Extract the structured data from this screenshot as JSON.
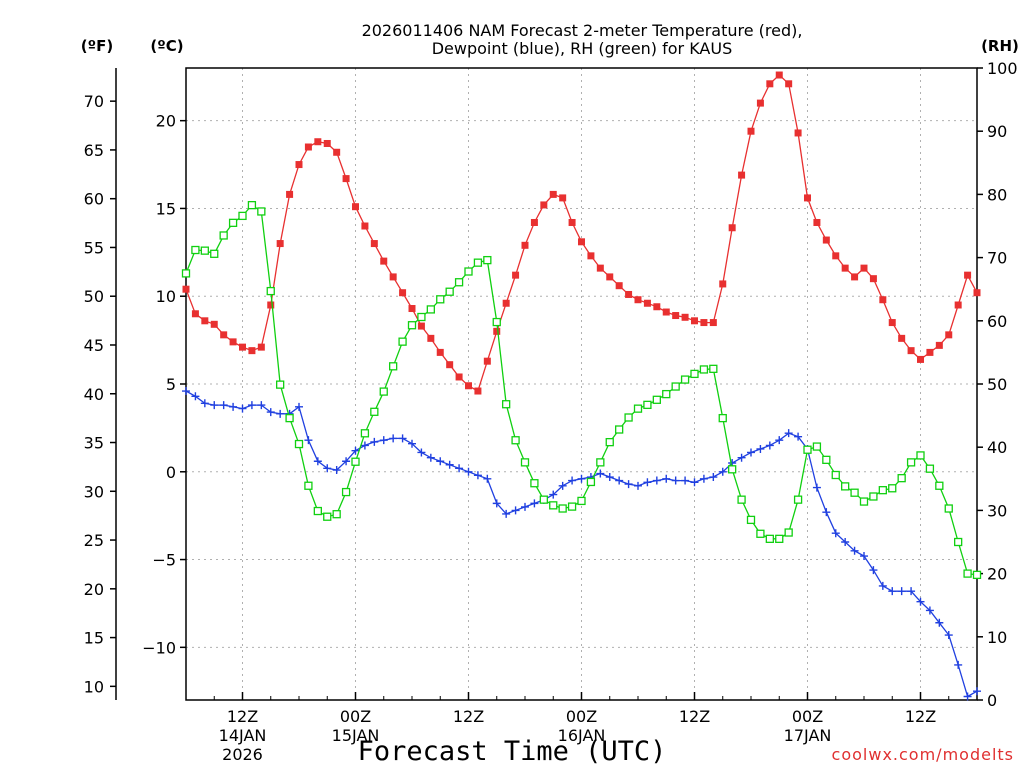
{
  "chart_data": {
    "type": "line",
    "title_line1": "2026011406 NAM Forecast 2-meter Temperature (red),",
    "title_line2": "Dewpoint (blue), RH (green) for KAUS",
    "xlabel": "Forecast Time (UTC)",
    "credit": "coolwx.com/modelts",
    "units": {
      "f": "(ºF)",
      "c": "(ºC)",
      "rh": "(RH)"
    },
    "xlim": [
      0,
      84
    ],
    "x_ticks": [
      {
        "x": 6,
        "label": "12Z",
        "sub": "14JAN",
        "sub2": "2026"
      },
      {
        "x": 18,
        "label": "00Z",
        "sub": "15JAN",
        "sub2": ""
      },
      {
        "x": 30,
        "label": "12Z",
        "sub": "",
        "sub2": ""
      },
      {
        "x": 42,
        "label": "00Z",
        "sub": "16JAN",
        "sub2": ""
      },
      {
        "x": 54,
        "label": "12Z",
        "sub": "",
        "sub2": ""
      },
      {
        "x": 66,
        "label": "00Z",
        "sub": "17JAN",
        "sub2": ""
      },
      {
        "x": 78,
        "label": "12Z",
        "sub": "",
        "sub2": ""
      }
    ],
    "y_celsius": {
      "lim": [
        -13,
        23
      ],
      "ticks": [
        -10,
        -5,
        0,
        5,
        10,
        15,
        20
      ],
      "labels": [
        "−10",
        "−5",
        "0",
        "5",
        "10",
        "15",
        "20"
      ]
    },
    "y_fahrenheit": {
      "ticks": [
        10,
        15,
        20,
        25,
        30,
        35,
        40,
        45,
        50,
        55,
        60,
        65,
        70
      ],
      "labels": [
        "10",
        "15",
        "20",
        "25",
        "30",
        "35",
        "40",
        "45",
        "50",
        "55",
        "60",
        "65",
        "70"
      ]
    },
    "y_rh": {
      "lim": [
        0,
        100
      ],
      "ticks": [
        0,
        10,
        20,
        30,
        40,
        50,
        60,
        70,
        80,
        90,
        100
      ],
      "labels": [
        "0",
        "10",
        "20",
        "30",
        "40",
        "50",
        "60",
        "70",
        "80",
        "90",
        "100"
      ]
    },
    "series": [
      {
        "name": "Temperature",
        "axis": "celsius",
        "color": "#e83030",
        "marker": "filled-square",
        "x": [
          0,
          1,
          2,
          3,
          4,
          5,
          6,
          7,
          8,
          9,
          10,
          11,
          12,
          13,
          14,
          15,
          16,
          17,
          18,
          19,
          20,
          21,
          22,
          23,
          24,
          25,
          26,
          27,
          28,
          29,
          30,
          31,
          32,
          33,
          34,
          35,
          36,
          37,
          38,
          39,
          40,
          41,
          42,
          43,
          44,
          45,
          46,
          47,
          48,
          49,
          50,
          51,
          52,
          53,
          54,
          55,
          56,
          57,
          58,
          59,
          60,
          61,
          62,
          63,
          64,
          65,
          66,
          67,
          68,
          69,
          70,
          71,
          72,
          73,
          74,
          75,
          76,
          77,
          78,
          79,
          80,
          81,
          82,
          83,
          84
        ],
        "values": [
          10.4,
          9.0,
          8.6,
          8.4,
          7.8,
          7.4,
          7.1,
          6.9,
          7.1,
          9.5,
          13.0,
          15.8,
          17.5,
          18.5,
          18.8,
          18.7,
          18.2,
          16.7,
          15.1,
          14.0,
          13.0,
          12.0,
          11.1,
          10.2,
          9.3,
          8.3,
          7.6,
          6.8,
          6.1,
          5.4,
          4.9,
          4.6,
          6.3,
          8.0,
          9.6,
          11.2,
          12.9,
          14.2,
          15.2,
          15.8,
          15.6,
          14.2,
          13.1,
          12.3,
          11.6,
          11.1,
          10.6,
          10.1,
          9.8,
          9.6,
          9.4,
          9.1,
          8.9,
          8.8,
          8.6,
          8.5,
          8.5,
          10.7,
          13.9,
          16.9,
          19.4,
          21.0,
          22.1,
          22.6,
          22.1,
          19.3,
          15.6,
          14.2,
          13.2,
          12.3,
          11.6,
          11.1,
          11.6,
          11.0,
          9.8,
          8.5,
          7.6,
          6.9,
          6.4,
          6.8,
          7.2,
          7.8,
          9.5,
          11.2,
          10.2
        ]
      },
      {
        "name": "Dewpoint",
        "axis": "celsius",
        "color": "#2040e0",
        "marker": "plus",
        "x": [
          0,
          1,
          2,
          3,
          4,
          5,
          6,
          7,
          8,
          9,
          10,
          11,
          12,
          13,
          14,
          15,
          16,
          17,
          18,
          19,
          20,
          21,
          22,
          23,
          24,
          25,
          26,
          27,
          28,
          29,
          30,
          31,
          32,
          33,
          34,
          35,
          36,
          37,
          38,
          39,
          40,
          41,
          42,
          43,
          44,
          45,
          46,
          47,
          48,
          49,
          50,
          51,
          52,
          53,
          54,
          55,
          56,
          57,
          58,
          59,
          60,
          61,
          62,
          63,
          64,
          65,
          66,
          67,
          68,
          69,
          70,
          71,
          72,
          73,
          74,
          75,
          76,
          77,
          78,
          79,
          80,
          81,
          82,
          83,
          84
        ],
        "values": [
          4.6,
          4.3,
          3.9,
          3.8,
          3.8,
          3.7,
          3.6,
          3.8,
          3.8,
          3.4,
          3.3,
          3.3,
          3.7,
          1.8,
          0.6,
          0.2,
          0.1,
          0.6,
          1.2,
          1.5,
          1.7,
          1.8,
          1.9,
          1.9,
          1.6,
          1.1,
          0.8,
          0.6,
          0.4,
          0.2,
          0.0,
          -0.2,
          -0.4,
          -1.8,
          -2.4,
          -2.2,
          -2.0,
          -1.8,
          -1.6,
          -1.3,
          -0.8,
          -0.5,
          -0.4,
          -0.3,
          -0.1,
          -0.3,
          -0.5,
          -0.7,
          -0.8,
          -0.6,
          -0.5,
          -0.4,
          -0.5,
          -0.5,
          -0.6,
          -0.4,
          -0.3,
          0.0,
          0.5,
          0.8,
          1.1,
          1.3,
          1.5,
          1.8,
          2.2,
          2.0,
          1.3,
          -0.9,
          -2.3,
          -3.5,
          -4.0,
          -4.5,
          -4.8,
          -5.6,
          -6.5,
          -6.8,
          -6.8,
          -6.8,
          -7.4,
          -7.9,
          -8.6,
          -9.3,
          -11.0,
          -12.8,
          -12.5
        ]
      },
      {
        "name": "RH",
        "axis": "rh",
        "color": "#10d010",
        "marker": "open-square",
        "x": [
          0,
          1,
          2,
          3,
          4,
          5,
          6,
          7,
          8,
          9,
          10,
          11,
          12,
          13,
          14,
          15,
          16,
          17,
          18,
          19,
          20,
          21,
          22,
          23,
          24,
          25,
          26,
          27,
          28,
          29,
          30,
          31,
          32,
          33,
          34,
          35,
          36,
          37,
          38,
          39,
          40,
          41,
          42,
          43,
          44,
          45,
          46,
          47,
          48,
          49,
          50,
          51,
          52,
          53,
          54,
          55,
          56,
          57,
          58,
          59,
          60,
          61,
          62,
          63,
          64,
          65,
          66,
          67,
          68,
          69,
          70,
          71,
          72,
          73,
          74,
          75,
          76,
          77,
          78,
          79,
          80,
          81,
          82,
          83,
          84
        ],
        "values": [
          67.5,
          71.2,
          71.1,
          70.6,
          73.5,
          75.5,
          76.6,
          78.3,
          77.3,
          64.7,
          49.9,
          44.6,
          40.5,
          33.9,
          29.9,
          29.0,
          29.4,
          32.9,
          37.7,
          42.2,
          45.6,
          48.8,
          52.8,
          56.7,
          59.3,
          60.6,
          61.8,
          63.4,
          64.6,
          66.1,
          67.8,
          69.2,
          69.6,
          59.8,
          46.8,
          41.1,
          37.6,
          34.3,
          31.7,
          30.8,
          30.3,
          30.6,
          31.5,
          34.5,
          37.6,
          40.8,
          42.8,
          44.7,
          46.1,
          46.7,
          47.5,
          48.4,
          49.6,
          50.7,
          51.6,
          52.3,
          52.4,
          44.6,
          36.5,
          31.7,
          28.5,
          26.3,
          25.5,
          25.5,
          26.5,
          31.7,
          39.6,
          40.1,
          38.0,
          35.6,
          33.8,
          32.8,
          31.4,
          32.2,
          33.2,
          33.5,
          35.1,
          37.6,
          38.7,
          36.6,
          33.9,
          30.3,
          25.0,
          20.0,
          19.8
        ]
      }
    ]
  }
}
